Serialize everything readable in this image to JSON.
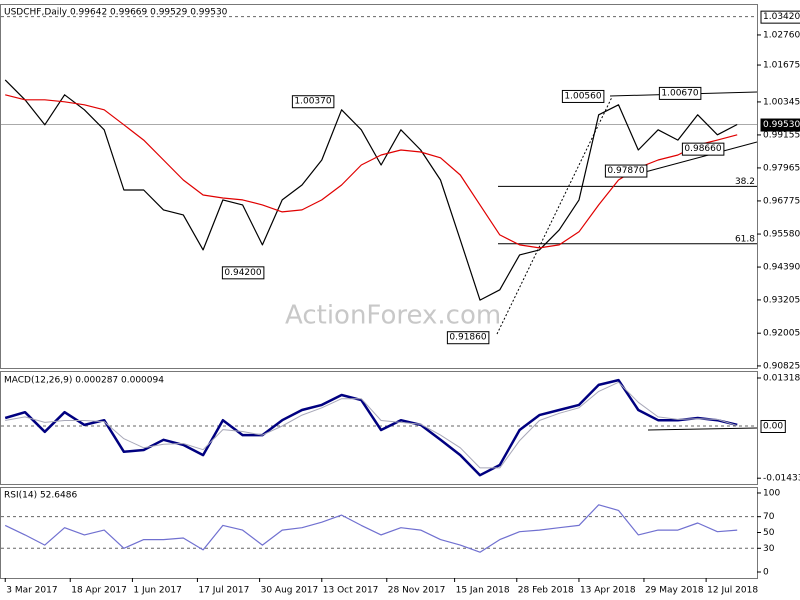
{
  "chart_data": [
    {
      "type": "line",
      "title": "USDCHF,Daily 0.99642 0.99669 0.99529 0.99530",
      "x": [
        "2017-03-03",
        "2017-03-17",
        "2017-03-31",
        "2017-04-14",
        "2017-04-28",
        "2017-05-12",
        "2017-05-26",
        "2017-06-09",
        "2017-06-23",
        "2017-07-07",
        "2017-07-21",
        "2017-08-04",
        "2017-08-18",
        "2017-09-01",
        "2017-09-15",
        "2017-09-29",
        "2017-10-13",
        "2017-10-27",
        "2017-11-10",
        "2017-11-24",
        "2017-12-08",
        "2017-12-22",
        "2018-01-05",
        "2018-01-19",
        "2018-02-02",
        "2018-02-16",
        "2018-03-02",
        "2018-03-16",
        "2018-03-30",
        "2018-04-13",
        "2018-04-27",
        "2018-05-11",
        "2018-05-25",
        "2018-06-08",
        "2018-06-22",
        "2018-07-06",
        "2018-07-20",
        "2018-08-03"
      ],
      "series": [
        {
          "color": "#000000",
          "values": [
            1.0114,
            1.0042,
            0.9952,
            1.006,
            1.0006,
            0.9934,
            0.9717,
            0.9717,
            0.9645,
            0.9627,
            0.9501,
            0.9681,
            0.9663,
            0.9519,
            0.9681,
            0.9735,
            0.9825,
            1.0006,
            0.9934,
            0.9807,
            0.9934,
            0.9861,
            0.9753,
            0.9537,
            0.932,
            0.9357,
            0.9483,
            0.9501,
            0.9573,
            0.9681,
            0.9988,
            1.0024,
            0.9861,
            0.9934,
            0.9897,
            0.9988,
            0.9916,
            0.9953
          ]
        },
        {
          "color": "#e00000",
          "values": [
            1.006,
            1.0042,
            1.0042,
            1.0035,
            1.0024,
            1.0006,
            0.9952,
            0.9897,
            0.9825,
            0.9753,
            0.9699,
            0.9688,
            0.9681,
            0.9663,
            0.9638,
            0.9645,
            0.9681,
            0.9735,
            0.9807,
            0.9843,
            0.9861,
            0.9854,
            0.9833,
            0.9771,
            0.9663,
            0.9555,
            0.9519,
            0.9508,
            0.9519,
            0.9566,
            0.9663,
            0.9753,
            0.9797,
            0.9825,
            0.9843,
            0.9879,
            0.9897,
            0.9916
          ]
        }
      ],
      "xlim": [
        "2017-02-28",
        "2018-08-17"
      ],
      "ylim": [
        0.9075,
        1.0384
      ],
      "yticks": [
        {
          "value": 1.0276,
          "label": "1.02760"
        },
        {
          "value": 1.01675,
          "label": "1.01675"
        },
        {
          "value": 1.00345,
          "label": "1.00345"
        },
        {
          "value": 0.99155,
          "label": "0.99155"
        },
        {
          "value": 0.97965,
          "label": "0.97965"
        },
        {
          "value": 0.96775,
          "label": "0.96775"
        },
        {
          "value": 0.9558,
          "label": "0.95580"
        },
        {
          "value": 0.9439,
          "label": "0.94390"
        },
        {
          "value": 0.93205,
          "label": "0.93205"
        },
        {
          "value": 0.92005,
          "label": "0.92005"
        },
        {
          "value": 0.90825,
          "label": "0.90825"
        }
      ],
      "hlines": [
        {
          "value": 1.0342,
          "label": "1.03420",
          "style": "dashed"
        },
        {
          "value": 0.9953,
          "label": "0.99530",
          "style": "solid"
        }
      ],
      "annotations": [
        {
          "value": 1.0037,
          "label": "1.00370"
        },
        {
          "value": 0.942,
          "label": "0.94200"
        },
        {
          "value": 0.9186,
          "label": "0.91860"
        },
        {
          "value": 1.0056,
          "label": "1.00560"
        },
        {
          "value": 1.0067,
          "label": "1.00670"
        },
        {
          "value": 0.9866,
          "label": "0.98660"
        },
        {
          "value": 0.9787,
          "label": "0.97870"
        }
      ],
      "levels": [
        {
          "value": 0.973,
          "label": "38.2"
        },
        {
          "value": 0.9523,
          "label": "61.8"
        }
      ],
      "watermark": "ActionForex.com"
    },
    {
      "type": "line",
      "title": "MACD(12,26,9) 0.000287 0.000094",
      "x": [
        "2017-03-03",
        "2017-03-17",
        "2017-03-31",
        "2017-04-14",
        "2017-04-28",
        "2017-05-12",
        "2017-05-26",
        "2017-06-09",
        "2017-06-23",
        "2017-07-07",
        "2017-07-21",
        "2017-08-04",
        "2017-08-18",
        "2017-09-01",
        "2017-09-15",
        "2017-09-29",
        "2017-10-13",
        "2017-10-27",
        "2017-11-10",
        "2017-11-24",
        "2017-12-08",
        "2017-12-22",
        "2018-01-05",
        "2018-01-19",
        "2018-02-02",
        "2018-02-16",
        "2018-03-02",
        "2018-03-16",
        "2018-03-30",
        "2018-04-13",
        "2018-04-27",
        "2018-05-11",
        "2018-05-25",
        "2018-06-08",
        "2018-06-22",
        "2018-07-06",
        "2018-07-20",
        "2018-08-03"
      ],
      "series": [
        {
          "color": "#000080",
          "values": [
            0.0022,
            0.0038,
            -0.0016,
            0.0038,
            0.0003,
            0.0016,
            -0.0071,
            -0.0066,
            -0.0038,
            -0.0052,
            -0.008,
            0.0016,
            -0.0025,
            -0.0025,
            0.0016,
            0.0044,
            0.0058,
            0.0085,
            0.0071,
            -0.0011,
            0.0016,
            0.0003,
            -0.0038,
            -0.008,
            -0.0135,
            -0.0107,
            -0.0011,
            0.003,
            0.0044,
            0.0058,
            0.0113,
            0.0126,
            0.0044,
            0.0016,
            0.0016,
            0.0022,
            0.0016,
            0.0003
          ]
        },
        {
          "color": "#a8a8b8",
          "values": [
            0.0015,
            0.0025,
            0.001,
            0.0015,
            0.0015,
            0.0012,
            -0.0035,
            -0.006,
            -0.005,
            -0.0048,
            -0.0065,
            -0.001,
            -0.0015,
            -0.0025,
            0,
            0.003,
            0.005,
            0.0075,
            0.0075,
            0.0015,
            0.001,
            0.0005,
            -0.0025,
            -0.006,
            -0.0115,
            -0.0115,
            -0.004,
            0.0015,
            0.0035,
            0.005,
            0.0095,
            0.012,
            0.0065,
            0.0025,
            0.0018,
            0.002,
            0.0018,
            0.0001
          ]
        }
      ],
      "xlim": [
        "2017-02-28",
        "2018-08-17"
      ],
      "ylim": [
        -0.01593,
        0.01483
      ],
      "yticks": [
        0.013184,
        -0.014339
      ],
      "hlines": [
        {
          "value": 0,
          "label": "0.00",
          "style": "dashed"
        }
      ]
    },
    {
      "type": "line",
      "title": "RSI(14) 52.6486",
      "x": [
        "2017-03-03",
        "2017-03-17",
        "2017-03-31",
        "2017-04-14",
        "2017-04-28",
        "2017-05-12",
        "2017-05-26",
        "2017-06-09",
        "2017-06-23",
        "2017-07-07",
        "2017-07-21",
        "2017-08-04",
        "2017-08-18",
        "2017-09-01",
        "2017-09-15",
        "2017-09-29",
        "2017-10-13",
        "2017-10-27",
        "2017-11-10",
        "2017-11-24",
        "2017-12-08",
        "2017-12-22",
        "2018-01-05",
        "2018-01-19",
        "2018-02-02",
        "2018-02-16",
        "2018-03-02",
        "2018-03-16",
        "2018-03-30",
        "2018-04-13",
        "2018-04-27",
        "2018-05-11",
        "2018-05-25",
        "2018-06-08",
        "2018-06-22",
        "2018-07-06",
        "2018-07-20",
        "2018-08-03"
      ],
      "series": [
        {
          "color": "#7070d0",
          "values": [
            59,
            47,
            34,
            56,
            47,
            53,
            30,
            41,
            41,
            43,
            28,
            59,
            53,
            34,
            53,
            56,
            63,
            72,
            59,
            47,
            56,
            53,
            41,
            34,
            25,
            41,
            51,
            53,
            56,
            59,
            85,
            78,
            47,
            53,
            53,
            62,
            51,
            53
          ]
        }
      ],
      "xlim": [
        "2017-02-28",
        "2018-08-17"
      ],
      "ylim": [
        -7.6,
        106.3
      ],
      "yticks": [
        100,
        70,
        50,
        30,
        0
      ],
      "hlines": [
        {
          "value": 70,
          "style": "dashed"
        },
        {
          "value": 30,
          "style": "dashed"
        }
      ],
      "xticks": [
        {
          "value": "2017-03-03",
          "label": "3 Mar 2017"
        },
        {
          "value": "2017-04-18",
          "label": "18 Apr 2017"
        },
        {
          "value": "2017-06-01",
          "label": "1 Jun 2017"
        },
        {
          "value": "2017-07-17",
          "label": "17 Jul 2017"
        },
        {
          "value": "2017-08-30",
          "label": "30 Aug 2017"
        },
        {
          "value": "2017-10-13",
          "label": "13 Oct 2017"
        },
        {
          "value": "2017-11-28",
          "label": "28 Nov 2017"
        },
        {
          "value": "2018-01-15",
          "label": "15 Jan 2018"
        },
        {
          "value": "2018-02-28",
          "label": "28 Feb 2018"
        },
        {
          "value": "2018-04-13",
          "label": "13 Apr 2018"
        },
        {
          "value": "2018-05-29",
          "label": "29 May 2018"
        },
        {
          "value": "2018-07-12",
          "label": "12 Jul 2018"
        }
      ]
    }
  ]
}
